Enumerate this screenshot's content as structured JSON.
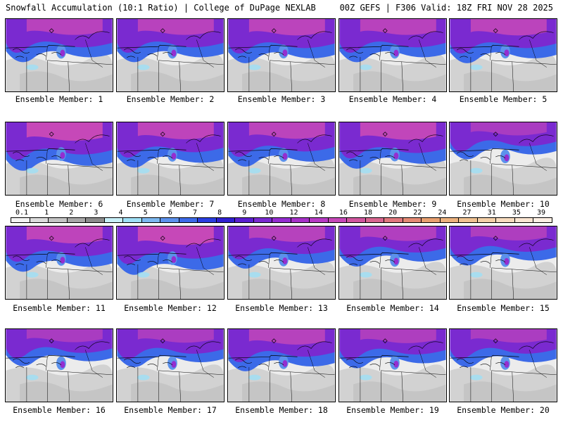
{
  "header": {
    "left": "Snowfall Accumulation (10:1 Ratio) | College of DuPage NEXLAB",
    "right": "00Z GEFS | F306 Valid: 18Z FRI NOV 28 2025"
  },
  "panels": [
    {
      "label": "Ensemble Member: 1",
      "intensity": 0.75
    },
    {
      "label": "Ensemble Member: 2",
      "intensity": 0.75
    },
    {
      "label": "Ensemble Member: 3",
      "intensity": 0.8
    },
    {
      "label": "Ensemble Member: 4",
      "intensity": 0.75
    },
    {
      "label": "Ensemble Member: 5",
      "intensity": 0.8
    },
    {
      "label": "Ensemble Member: 6",
      "intensity": 1.0
    },
    {
      "label": "Ensemble Member: 7",
      "intensity": 0.85
    },
    {
      "label": "Ensemble Member: 8",
      "intensity": 0.8
    },
    {
      "label": "Ensemble Member: 9",
      "intensity": 0.9
    },
    {
      "label": "Ensemble Member: 10",
      "intensity": 0.45
    },
    {
      "label": "Ensemble Member: 11",
      "intensity": 0.85
    },
    {
      "label": "Ensemble Member: 12",
      "intensity": 1.0
    },
    {
      "label": "Ensemble Member: 13",
      "intensity": 0.7
    },
    {
      "label": "Ensemble Member: 14",
      "intensity": 0.6
    },
    {
      "label": "Ensemble Member: 15",
      "intensity": 0.55
    },
    {
      "label": "Ensemble Member: 16",
      "intensity": 0.45
    },
    {
      "label": "Ensemble Member: 17",
      "intensity": 0.5
    },
    {
      "label": "Ensemble Member: 18",
      "intensity": 0.7
    },
    {
      "label": "Ensemble Member: 19",
      "intensity": 0.55
    },
    {
      "label": "Ensemble Member: 20",
      "intensity": 0.5
    }
  ],
  "legend": {
    "ticks": [
      "0.1",
      "1",
      "2",
      "3",
      "4",
      "5",
      "6",
      "7",
      "8",
      "9",
      "10",
      "12",
      "14",
      "16",
      "18",
      "20",
      "22",
      "24",
      "27",
      "31",
      "35",
      "39"
    ],
    "colors": [
      "#f4f4f4",
      "#dcdcdc",
      "#c4c4c4",
      "#a8a8a8",
      "#8c8c8c",
      "#c8f0f8",
      "#9ee0f6",
      "#7cb8f0",
      "#5c92ec",
      "#3c6ae8",
      "#2a3ee0",
      "#3020d0",
      "#5a20d0",
      "#7a2ad0",
      "#942ed0",
      "#a632c8",
      "#b63ac4",
      "#c648b8",
      "#d0569e",
      "#d86690",
      "#e0787e",
      "#e48a74",
      "#e8a070",
      "#ecb27e",
      "#f0c292",
      "#f4d0a8",
      "#f8dcbe",
      "#fbe6d2",
      "#fdf0e4"
    ]
  }
}
